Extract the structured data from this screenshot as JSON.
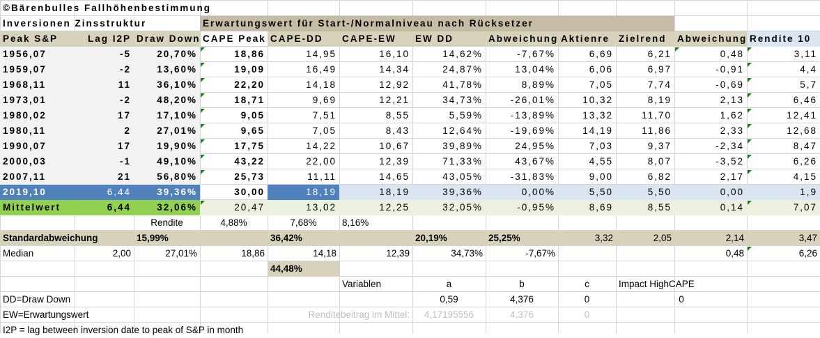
{
  "title": "©Bärenbulles Fallhöhenbestimmung",
  "section_left": "Inversionen Zinsstruktur",
  "section_right": "Erwartungswert für Start-/Normalniveau nach Rücksetzer",
  "headers": [
    "Peak S&P",
    "Lag I2P",
    "Draw Down",
    "CAPE Peak",
    "CAPE-DD",
    "CAPE-EW",
    "EW DD",
    "Abweichung",
    "Aktienre",
    "Zielrend",
    "Abweichung",
    "Rendite 10"
  ],
  "rows": [
    {
      "peak": "1956,07",
      "lag": "-5",
      "dd": "20,70%",
      "cape": "18,86",
      "cdd": "14,95",
      "cew": "16,10",
      "ewdd": "14,62%",
      "abw": "-7,67%",
      "akt": "6,69",
      "ziel": "6,21",
      "abw2": "0,48",
      "ren": "3,11"
    },
    {
      "peak": "1959,07",
      "lag": "-2",
      "dd": "13,60%",
      "cape": "19,09",
      "cdd": "16,49",
      "cew": "14,34",
      "ewdd": "24,87%",
      "abw": "13,04%",
      "akt": "6,06",
      "ziel": "6,97",
      "abw2": "-0,91",
      "ren": "4,4"
    },
    {
      "peak": "1968,11",
      "lag": "11",
      "dd": "36,10%",
      "cape": "22,20",
      "cdd": "14,18",
      "cew": "12,92",
      "ewdd": "41,78%",
      "abw": "8,89%",
      "akt": "7,05",
      "ziel": "7,74",
      "abw2": "-0,69",
      "ren": "5,7"
    },
    {
      "peak": "1973,01",
      "lag": "-2",
      "dd": "48,20%",
      "cape": "18,71",
      "cdd": "9,69",
      "cew": "12,21",
      "ewdd": "34,73%",
      "abw": "-26,01%",
      "akt": "10,32",
      "ziel": "8,19",
      "abw2": "2,13",
      "ren": "6,46"
    },
    {
      "peak": "1980,02",
      "lag": "17",
      "dd": "17,10%",
      "cape": "9,05",
      "cdd": "7,51",
      "cew": "8,55",
      "ewdd": "5,59%",
      "abw": "-13,89%",
      "akt": "13,32",
      "ziel": "11,70",
      "abw2": "1,62",
      "ren": "12,41"
    },
    {
      "peak": "1980,11",
      "lag": "2",
      "dd": "27,01%",
      "cape": "9,65",
      "cdd": "7,05",
      "cew": "8,43",
      "ewdd": "12,64%",
      "abw": "-19,69%",
      "akt": "14,19",
      "ziel": "11,86",
      "abw2": "2,33",
      "ren": "12,68"
    },
    {
      "peak": "1990,07",
      "lag": "17",
      "dd": "19,90%",
      "cape": "17,75",
      "cdd": "14,22",
      "cew": "10,67",
      "ewdd": "39,89%",
      "abw": "24,95%",
      "akt": "7,03",
      "ziel": "9,37",
      "abw2": "-2,34",
      "ren": "8,47"
    },
    {
      "peak": "2000,03",
      "lag": "-1",
      "dd": "49,10%",
      "cape": "43,22",
      "cdd": "22,00",
      "cew": "12,39",
      "ewdd": "71,33%",
      "abw": "43,67%",
      "akt": "4,55",
      "ziel": "8,07",
      "abw2": "-3,52",
      "ren": "6,26"
    },
    {
      "peak": "2007,11",
      "lag": "21",
      "dd": "56,80%",
      "cape": "25,73",
      "cdd": "11,11",
      "cew": "14,65",
      "ewdd": "43,05%",
      "abw": "-31,83%",
      "akt": "9,00",
      "ziel": "6,82",
      "abw2": "2,17",
      "ren": "4,15"
    }
  ],
  "current": {
    "peak": "2019,10",
    "lag": "6,44",
    "dd": "39,36%",
    "cape": "30,00",
    "cdd": "18,19",
    "cew": "18,19",
    "ewdd": "39,36%",
    "abw": "0,00%",
    "akt": "5,50",
    "ziel": "5,50",
    "abw2": "0,00",
    "ren": "1,9"
  },
  "mean": {
    "label": "Mittelwert",
    "lag": "6,44",
    "dd": "32,06%",
    "cape": "20,47",
    "cdd": "13,02",
    "cew": "12,25",
    "ewdd": "32,05%",
    "abw": "-0,95%",
    "akt": "8,69",
    "ziel": "8,55",
    "abw2": "0,14",
    "ren": "7,07"
  },
  "rendite": {
    "label": "Rendite",
    "cape": "4,88%",
    "cdd": "7,68%",
    "cew": "8,16%"
  },
  "std": {
    "label": "Standardabweichung",
    "dd": "15,99%",
    "cdd": "36,42%",
    "ewdd": "20,19%",
    "abw": "25,25%",
    "akt": "3,32",
    "ziel": "2,05",
    "abw2": "2,14",
    "ren": "3,47"
  },
  "median": {
    "label": "Median",
    "lag": "2,00",
    "dd": "27,01%",
    "cape": "18,86",
    "cdd": "14,18",
    "cew": "12,39",
    "ewdd": "34,73%",
    "abw": "-7,67%",
    "abw2": "0,48",
    "ren": "6,26"
  },
  "extra_pct": "44,48%",
  "variables": {
    "label": "Variablen",
    "a": "a",
    "b": "b",
    "c": "c",
    "impact": "Impact HighCAPE",
    "a_val": "0,59",
    "b_val": "4,376",
    "c_val": "0",
    "impact_val": "0"
  },
  "renditebeitrag": {
    "label": "Renditebeitrag im Mittel:",
    "a": "4,17195556",
    "b": "4,376",
    "c": "0"
  },
  "legend": [
    "DD=Draw Down",
    "EW=Erwartungswert",
    "I2P = lag between inversion date to peak of S&P in month"
  ],
  "colors": {
    "tan": "#d8d2bc",
    "header_tan": "#c4bca4",
    "blue_row": "#dbe5f1",
    "blue_dark": "#4f81bd",
    "green": "#92d050",
    "light_green": "#ebf1de",
    "left_gray": "#f2f2f2",
    "grid": "#d4d4d4",
    "faded": "#bfbfbf",
    "triangle": "#1e7a1e"
  }
}
